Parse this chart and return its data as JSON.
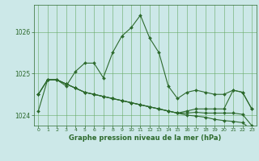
{
  "xlabel": "Graphe pression niveau de la mer (hPa)",
  "x": [
    0,
    1,
    2,
    3,
    4,
    5,
    6,
    7,
    8,
    9,
    10,
    11,
    12,
    13,
    14,
    15,
    16,
    17,
    18,
    19,
    20,
    21,
    22,
    23
  ],
  "line1": [
    1024.1,
    1024.85,
    1024.85,
    1024.7,
    1025.05,
    1025.25,
    1025.25,
    1024.9,
    1025.5,
    1025.9,
    1026.1,
    1026.4,
    1025.85,
    1025.5,
    1024.7,
    1024.4,
    1024.55,
    1024.6,
    1024.55,
    1024.5,
    1024.5,
    1024.6,
    1024.55,
    1024.15
  ],
  "line2": [
    1024.5,
    1024.85,
    1024.85,
    1024.75,
    1024.65,
    1024.55,
    1024.5,
    1024.45,
    1024.4,
    1024.35,
    1024.3,
    1024.25,
    1024.2,
    1024.15,
    1024.1,
    1024.05,
    1024.0,
    1023.98,
    1023.95,
    1023.9,
    1023.87,
    1023.85,
    1023.82,
    1023.65
  ],
  "line3": [
    1024.5,
    1024.85,
    1024.85,
    1024.75,
    1024.65,
    1024.55,
    1024.5,
    1024.45,
    1024.4,
    1024.35,
    1024.3,
    1024.25,
    1024.2,
    1024.15,
    1024.1,
    1024.05,
    1024.05,
    1024.07,
    1024.05,
    1024.05,
    1024.05,
    1024.05,
    1024.02,
    1023.75
  ],
  "line4": [
    1024.5,
    1024.85,
    1024.85,
    1024.75,
    1024.65,
    1024.55,
    1024.5,
    1024.45,
    1024.4,
    1024.35,
    1024.3,
    1024.25,
    1024.2,
    1024.15,
    1024.1,
    1024.05,
    1024.1,
    1024.15,
    1024.15,
    1024.15,
    1024.15,
    1024.6,
    1024.55,
    1024.15
  ],
  "line_color": "#2d6a2d",
  "bg_color": "#cce8e8",
  "grid_color": "#66aa66",
  "ylim": [
    1023.75,
    1026.65
  ],
  "yticks": [
    1024,
    1025,
    1026
  ],
  "xticks": [
    0,
    1,
    2,
    3,
    4,
    5,
    6,
    7,
    8,
    9,
    10,
    11,
    12,
    13,
    14,
    15,
    16,
    17,
    18,
    19,
    20,
    21,
    22,
    23
  ],
  "marker": "D",
  "markersize": 2.0,
  "linewidth": 0.8
}
